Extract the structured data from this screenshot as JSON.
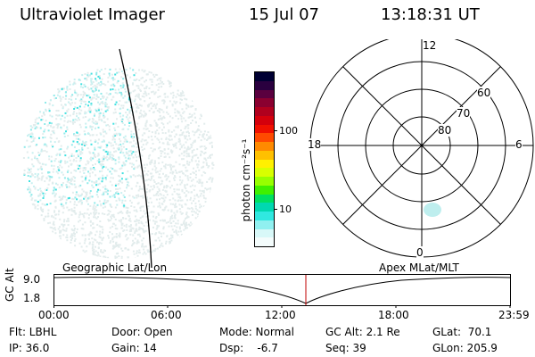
{
  "header": {
    "title": "Ultraviolet Imager",
    "date": "15 Jul 07",
    "time": "13:18:31 UT"
  },
  "colorbar": {
    "label": "photon cm⁻²s⁻¹",
    "ticks": [
      "100",
      "10"
    ],
    "colors": [
      "#000033",
      "#2a003f",
      "#5a003f",
      "#8a0030",
      "#b0001e",
      "#d4000c",
      "#f01000",
      "#ff4a00",
      "#ff8a00",
      "#ffc000",
      "#fff000",
      "#d8ff00",
      "#98ff00",
      "#40f000",
      "#00e060",
      "#00d8b0",
      "#30e8e0",
      "#90f0f0",
      "#d8f8f8",
      "#f4fcfc"
    ]
  },
  "polar": {
    "ring_labels": [
      "80",
      "70",
      "60"
    ],
    "mlt_labels": {
      "top": "12",
      "bottom": "0",
      "left": "18",
      "right": "6"
    }
  },
  "timeline": {
    "title_left": "Geographic Lat/Lon",
    "title_right": "Apex MLat/MLT",
    "ylabel": "GC Alt",
    "yticks": [
      "9.0",
      "1.8"
    ],
    "xticks": [
      "00:00",
      "06:00",
      "12:00",
      "18:00",
      "23:59"
    ],
    "marker_color": "#c00000"
  },
  "info": {
    "filter": "Flt: LBHL",
    "door": "Door: Open",
    "mode": "Mode: Normal",
    "gc_alt": "GC Alt: 2.1 Re",
    "glat": "GLat:  70.1",
    "ip": "IP: 36.0",
    "gain": "Gain: 14",
    "dsp": "Dsp:    -6.7",
    "seq": "Seq: 39",
    "glon": "GLon: 205.9"
  }
}
